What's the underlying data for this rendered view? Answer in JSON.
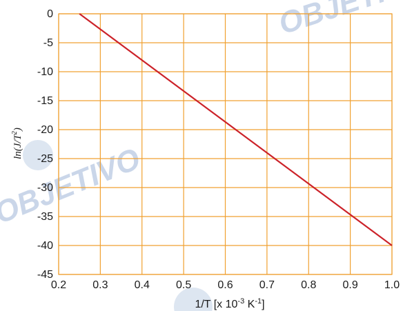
{
  "watermark": "OBJETIVO",
  "chart_data": {
    "type": "line",
    "xlabel": "1/T [x 10-3 K-1]",
    "xlabel_parts": {
      "base": "1/T [x 10",
      "exp1": "-3",
      "mid": " K",
      "exp2": "-1",
      "end": "]"
    },
    "ylabel": "ln(J/T2)",
    "ylabel_parts": {
      "base": "ln(J/T",
      "exp": "2",
      "end": ")"
    },
    "xlim": [
      0.2,
      1.0
    ],
    "ylim": [
      -45,
      0
    ],
    "xticks": [
      "0.2",
      "0.3",
      "0.4",
      "0.5",
      "0.6",
      "0.7",
      "0.8",
      "0.9",
      "1.0"
    ],
    "yticks": [
      "0",
      "-5",
      "-10",
      "-15",
      "-20",
      "-25",
      "-30",
      "-35",
      "-40",
      "-45"
    ],
    "grid": true,
    "colors": {
      "grid": "#f0a030",
      "line": "#cc2229"
    },
    "series": [
      {
        "x": [
          0.25,
          1.0
        ],
        "y": [
          0,
          -40
        ]
      }
    ]
  }
}
